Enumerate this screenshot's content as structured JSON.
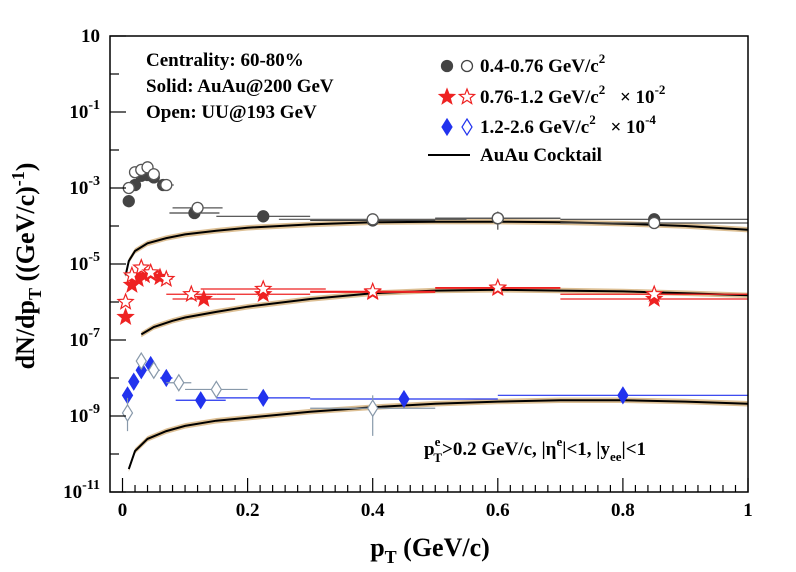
{
  "chart_data": {
    "type": "scatter",
    "y_scale": "log",
    "x_range": [
      -0.02,
      1.0
    ],
    "y_range": [
      1e-11,
      10
    ],
    "x_ticks": [
      {
        "v": 0,
        "label": "0"
      },
      {
        "v": 0.2,
        "label": "0.2"
      },
      {
        "v": 0.4,
        "label": "0.4"
      },
      {
        "v": 0.6,
        "label": "0.6"
      },
      {
        "v": 0.8,
        "label": "0.8"
      },
      {
        "v": 1.0,
        "label": "1"
      }
    ],
    "y_ticks": [
      {
        "exp": -11,
        "base": "10",
        "sup": "-11"
      },
      {
        "exp": -9,
        "base": "10",
        "sup": "-9"
      },
      {
        "exp": -7,
        "base": "10",
        "sup": "-7"
      },
      {
        "exp": -5,
        "base": "10",
        "sup": "-5"
      },
      {
        "exp": -3,
        "base": "10",
        "sup": "-3"
      },
      {
        "exp": -1,
        "base": "10",
        "sup": "-1"
      },
      {
        "exp": 1,
        "base": "10",
        "sup": ""
      }
    ],
    "xlabel": {
      "main": "p",
      "sub": "T",
      "rest": " (GeV/c)"
    },
    "ylabel": {
      "a": "dN/dp",
      "asub": "T",
      "b": " ((GeV/c)",
      "bsup": "-1",
      "c": ")"
    },
    "info_lines": [
      "Centrality: 60-80%",
      "Solid: AuAu@200 GeV",
      "Open: UU@193 GeV"
    ],
    "legend": [
      {
        "id": "low",
        "text": "0.4-0.76 GeV/c",
        "sup": "2",
        "scale": "",
        "scale_sup": "",
        "marker": "circle",
        "color": "#444444"
      },
      {
        "id": "mid",
        "text": "0.76-1.2  GeV/c",
        "sup": "2",
        "scale": "× 10",
        "scale_sup": "-2",
        "marker": "star",
        "color": "#ee2222"
      },
      {
        "id": "high",
        "text": "1.2-2.6  GeV/c",
        "sup": "2",
        "scale": "× 10",
        "scale_sup": "-4",
        "marker": "diamond",
        "color": "#2233ee"
      },
      {
        "id": "cocktail",
        "text": "AuAu Cocktail",
        "sup": "",
        "scale": "",
        "scale_sup": "",
        "marker": "line",
        "color": "#000000"
      }
    ],
    "cut_text": {
      "p": "p",
      "p_sup": "e",
      "p_sub": "T",
      "r1": ">0.2 GeV/c, |η",
      "eta_sup": "e",
      "r2": "|<1, |y",
      "y_sub": "ee",
      "r3": "|<1"
    },
    "series": [
      {
        "name": "0.4-0.76 GeV/c2 AuAu",
        "marker": "circle",
        "filled": true,
        "color": "#444444",
        "points": [
          {
            "x": 0.01,
            "y": 0.00045,
            "xerr": 0.005
          },
          {
            "x": 0.02,
            "y": 0.0012,
            "xerr": 0.005
          },
          {
            "x": 0.03,
            "y": 0.0021,
            "xerr": 0.005
          },
          {
            "x": 0.04,
            "y": 0.0022,
            "xerr": 0.005
          },
          {
            "x": 0.05,
            "y": 0.0019,
            "xerr": 0.005
          },
          {
            "x": 0.065,
            "y": 0.0012,
            "xerr": 0.01
          },
          {
            "x": 0.115,
            "y": 0.00022,
            "xerr": 0.04
          },
          {
            "x": 0.225,
            "y": 0.00018,
            "xerr": 0.075,
            "yerr": [
              0.00013,
              0.00024
            ]
          },
          {
            "x": 0.4,
            "y": 0.00014,
            "xerr": 0.1,
            "yerr": [
              0.0001,
              0.00019
            ]
          },
          {
            "x": 0.6,
            "y": 0.00016,
            "xerr": 0.1,
            "yerr": [
              8e-05,
              0.00024
            ]
          },
          {
            "x": 0.85,
            "y": 0.00015,
            "xerr": 0.15
          }
        ]
      },
      {
        "name": "0.4-0.76 GeV/c2 UU",
        "marker": "circle",
        "filled": false,
        "color": "#555555",
        "points": [
          {
            "x": 0.01,
            "y": 0.001,
            "xerr": 0.005
          },
          {
            "x": 0.02,
            "y": 0.0026,
            "xerr": 0.005
          },
          {
            "x": 0.03,
            "y": 0.003,
            "xerr": 0.005
          },
          {
            "x": 0.04,
            "y": 0.0035,
            "xerr": 0.005
          },
          {
            "x": 0.05,
            "y": 0.0023,
            "xerr": 0.005
          },
          {
            "x": 0.07,
            "y": 0.0012,
            "xerr": 0.012
          },
          {
            "x": 0.12,
            "y": 0.0003,
            "xerr": 0.04
          },
          {
            "x": 0.4,
            "y": 0.00015,
            "xerr": 0.15
          },
          {
            "x": 0.6,
            "y": 0.00016,
            "xerr": 0.1
          },
          {
            "x": 0.85,
            "y": 0.00012,
            "xerr": 0.15
          }
        ]
      },
      {
        "name": "0.76-1.2 GeV/c2 AuAu",
        "marker": "star",
        "filled": true,
        "color": "#ee2222",
        "points": [
          {
            "x": 0.005,
            "y": 4e-07,
            "xerr": 0.005
          },
          {
            "x": 0.015,
            "y": 2.8e-06,
            "xerr": 0.005
          },
          {
            "x": 0.025,
            "y": 4e-06,
            "xerr": 0.005
          },
          {
            "x": 0.035,
            "y": 5e-06,
            "xerr": 0.005
          },
          {
            "x": 0.045,
            "y": 5.5e-06,
            "xerr": 0.005
          },
          {
            "x": 0.06,
            "y": 4.5e-06,
            "xerr": 0.01
          },
          {
            "x": 0.13,
            "y": 1.2e-06,
            "xerr": 0.05
          },
          {
            "x": 0.225,
            "y": 1.6e-06,
            "xerr": 0.075
          },
          {
            "x": 0.4,
            "y": 1.8e-06,
            "xerr": 0.1
          },
          {
            "x": 0.6,
            "y": 2.3e-06,
            "xerr": 0.1
          },
          {
            "x": 0.85,
            "y": 1.2e-06,
            "xerr": 0.15
          }
        ]
      },
      {
        "name": "0.76-1.2 GeV/c2 UU",
        "marker": "star",
        "filled": false,
        "color": "#ee2222",
        "points": [
          {
            "x": 0.005,
            "y": 1e-06,
            "xerr": 0.005
          },
          {
            "x": 0.015,
            "y": 5e-06,
            "xerr": 0.005
          },
          {
            "x": 0.03,
            "y": 8e-06,
            "xerr": 0.005
          },
          {
            "x": 0.045,
            "y": 6e-06,
            "xerr": 0.005
          },
          {
            "x": 0.07,
            "y": 4e-06,
            "xerr": 0.01
          },
          {
            "x": 0.11,
            "y": 1.6e-06,
            "xerr": 0.04
          },
          {
            "x": 0.225,
            "y": 2.2e-06,
            "xerr": 0.1
          },
          {
            "x": 0.4,
            "y": 1.9e-06,
            "xerr": 0.1
          },
          {
            "x": 0.6,
            "y": 2.4e-06,
            "xerr": 0.1
          },
          {
            "x": 0.85,
            "y": 1.6e-06,
            "xerr": 0.15
          }
        ]
      },
      {
        "name": "1.2-2.6 GeV/c2 AuAu",
        "marker": "diamond",
        "filled": true,
        "color": "#2233ee",
        "points": [
          {
            "x": 0.008,
            "y": 3.5e-09,
            "xerr": 0.005
          },
          {
            "x": 0.018,
            "y": 8e-09,
            "xerr": 0.005
          },
          {
            "x": 0.03,
            "y": 1.6e-08,
            "xerr": 0.005
          },
          {
            "x": 0.045,
            "y": 2.2e-08,
            "xerr": 0.005
          },
          {
            "x": 0.07,
            "y": 1e-08,
            "xerr": 0.01
          },
          {
            "x": 0.125,
            "y": 2.6e-09,
            "xerr": 0.04
          },
          {
            "x": 0.225,
            "y": 3e-09,
            "xerr": 0.075
          },
          {
            "x": 0.45,
            "y": 2.8e-09,
            "xerr": 0.15
          },
          {
            "x": 0.8,
            "y": 3.5e-09,
            "xerr": 0.2
          }
        ]
      },
      {
        "name": "1.2-2.6 GeV/c2 UU",
        "marker": "diamond",
        "filled": false,
        "color": "#8899aa",
        "points": [
          {
            "x": 0.008,
            "y": 1.2e-09,
            "xerr": 0.005,
            "yerr": [
              4e-10,
              3e-09
            ]
          },
          {
            "x": 0.03,
            "y": 2.8e-08,
            "xerr": 0.005
          },
          {
            "x": 0.05,
            "y": 1.6e-08,
            "xerr": 0.01
          },
          {
            "x": 0.09,
            "y": 7.5e-09,
            "xerr": 0.02
          },
          {
            "x": 0.15,
            "y": 5e-09,
            "xerr": 0.05
          },
          {
            "x": 0.4,
            "y": 1.6e-09,
            "xerr": 0.1,
            "yerr": [
              3e-10,
              3.5e-09
            ]
          }
        ]
      }
    ],
    "cocktail_curves": [
      {
        "x": [
          0.005,
          0.01,
          0.02,
          0.04,
          0.07,
          0.1,
          0.15,
          0.2,
          0.3,
          0.4,
          0.5,
          0.6,
          0.7,
          0.8,
          0.9,
          1.0
        ],
        "y": [
          5e-06,
          1.2e-05,
          2.2e-05,
          3.5e-05,
          4.8e-05,
          6e-05,
          7.5e-05,
          9e-05,
          0.00011,
          0.000125,
          0.00013,
          0.00013,
          0.000125,
          0.000115,
          0.0001,
          8e-05
        ]
      },
      {
        "x": [
          0.03,
          0.05,
          0.08,
          0.1,
          0.15,
          0.2,
          0.3,
          0.4,
          0.5,
          0.6,
          0.7,
          0.8,
          0.9,
          1.0
        ],
        "y": [
          1.4e-07,
          2.2e-07,
          3.2e-07,
          3.9e-07,
          5.5e-07,
          7.5e-07,
          1.2e-06,
          1.7e-06,
          2e-06,
          2.1e-06,
          2e-06,
          1.9e-06,
          1.7e-06,
          1.5e-06
        ]
      },
      {
        "x": [
          0.01,
          0.02,
          0.04,
          0.07,
          0.1,
          0.15,
          0.2,
          0.3,
          0.4,
          0.5,
          0.6,
          0.7,
          0.8,
          0.9,
          1.0
        ],
        "y": [
          4e-11,
          1.2e-10,
          2.5e-10,
          4e-10,
          5.5e-10,
          7.5e-10,
          9e-10,
          1.3e-09,
          1.7e-09,
          2.1e-09,
          2.4e-09,
          2.6e-09,
          2.6e-09,
          2.4e-09,
          2.1e-09
        ]
      }
    ],
    "band_color": "#d9b98a"
  }
}
